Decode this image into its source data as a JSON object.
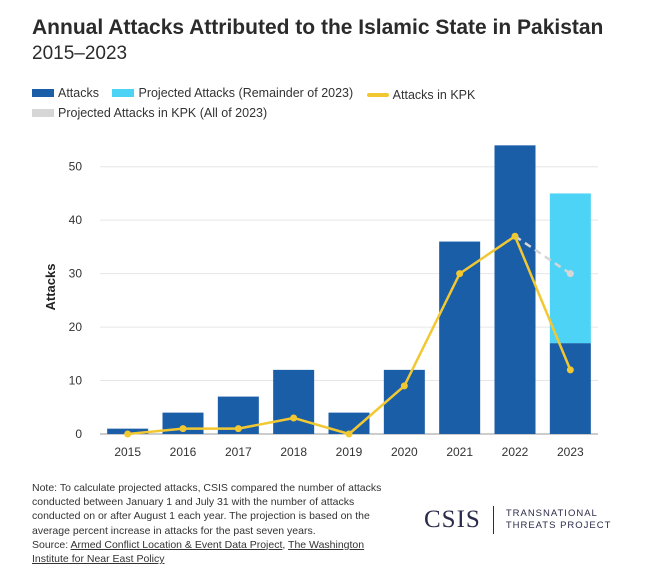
{
  "header": {
    "title": "Annual Attacks Attributed to the Islamic State in Pakistan",
    "subtitle": "2015–2023"
  },
  "legend": [
    {
      "label": "Attacks",
      "color": "#1a5ea8",
      "kind": "bar"
    },
    {
      "label": "Projected Attacks (Remainder of 2023)",
      "color": "#4dd3f5",
      "kind": "bar"
    },
    {
      "label": "Attacks in KPK",
      "color": "#f2c832",
      "kind": "line"
    },
    {
      "label": "Projected Attacks in KPK (All of 2023)",
      "color": "#d6d6d6",
      "kind": "bar"
    }
  ],
  "chart_data": {
    "type": "bar",
    "ylabel": "Attacks",
    "ylim": [
      0,
      55
    ],
    "yticks": [
      0,
      10,
      20,
      30,
      40,
      50
    ],
    "categories": [
      "2015",
      "2016",
      "2017",
      "2018",
      "2019",
      "2020",
      "2021",
      "2022",
      "2023"
    ],
    "series": [
      {
        "name": "Attacks",
        "type": "bar",
        "color": "#1a5ea8",
        "values": [
          1,
          4,
          7,
          12,
          4,
          12,
          36,
          54,
          17
        ]
      },
      {
        "name": "Projected Attacks (Remainder of 2023)",
        "type": "bar",
        "stacked": true,
        "color": "#4dd3f5",
        "values": [
          0,
          0,
          0,
          0,
          0,
          0,
          0,
          0,
          28
        ]
      },
      {
        "name": "Attacks in KPK",
        "type": "line",
        "color": "#f2c832",
        "values": [
          0,
          1,
          1,
          3,
          0,
          9,
          30,
          37,
          12
        ]
      },
      {
        "name": "Projected Attacks in KPK (All of 2023)",
        "type": "line",
        "dashed": true,
        "color": "#d6d6d6",
        "x": [
          "2022",
          "2023"
        ],
        "values": [
          37,
          30
        ]
      }
    ],
    "grid": true
  },
  "note": {
    "text": "Note: To calculate projected attacks, CSIS compared the number of attacks conducted between January 1 and July 31 with the number of attacks conducted on or after August 1 each year. The projection is based on the average percent increase in attacks for the past seven years.",
    "source_prefix": "Source: ",
    "source_link1": "Armed Conflict Location & Event Data Project",
    "source_sep": ", ",
    "source_link2": "The Washington Institute for Near East Policy"
  },
  "logo": {
    "name": "CSIS",
    "line1": "TRANSNATIONAL",
    "line2": "THREATS PROJECT"
  }
}
